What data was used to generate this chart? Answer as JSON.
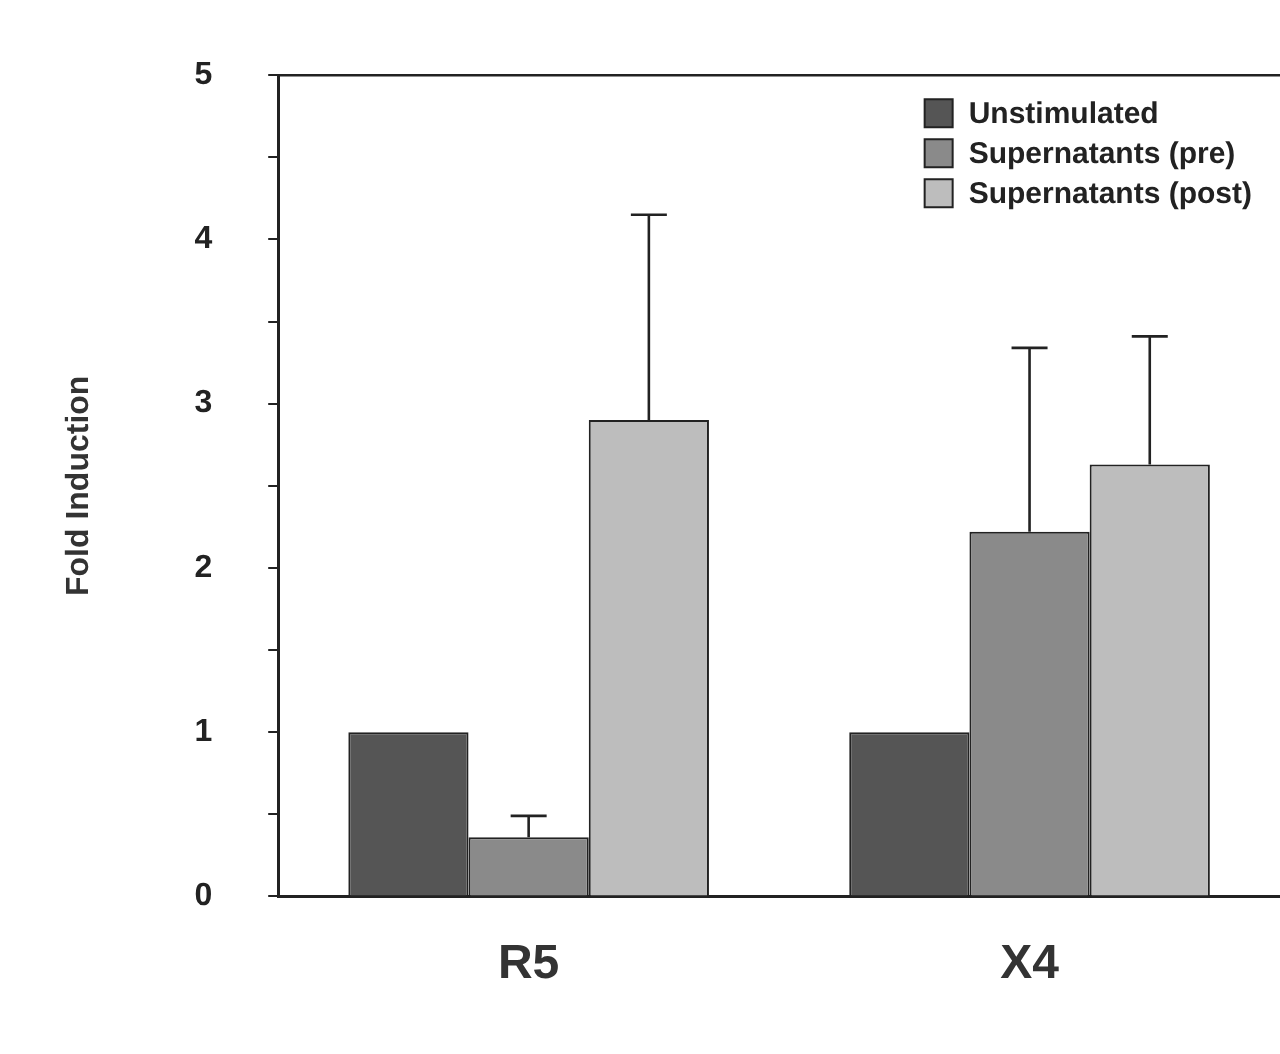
{
  "chart_data": {
    "type": "bar",
    "ylabel": "Fold Induction",
    "categories": [
      "R5",
      "X4"
    ],
    "series": [
      {
        "name": "Unstimulated",
        "color": "#555555",
        "values": [
          1.0,
          1.0
        ]
      },
      {
        "name": "Supernatants (pre)",
        "color": "#8a8a8a",
        "values": [
          0.36,
          2.22
        ],
        "errors": [
          [
            0.36,
            0.49
          ],
          [
            2.22,
            3.34
          ]
        ]
      },
      {
        "name": "Supernatants (post)",
        "color": "#bdbdbd",
        "values": [
          2.9,
          2.63
        ],
        "errors": [
          [
            2.9,
            4.15
          ],
          [
            2.63,
            3.41
          ]
        ]
      }
    ],
    "ylim": [
      0,
      5
    ],
    "yticks": [
      0,
      {
        "value": 0.5,
        "label": null
      },
      1,
      {
        "value": 1.5,
        "label": null
      },
      2,
      {
        "value": 2.5,
        "label": null
      },
      3,
      {
        "value": 3.5,
        "label": null
      },
      4,
      {
        "value": 4.5,
        "label": null
      },
      5
    ],
    "legend": "top right",
    "grid": false
  }
}
